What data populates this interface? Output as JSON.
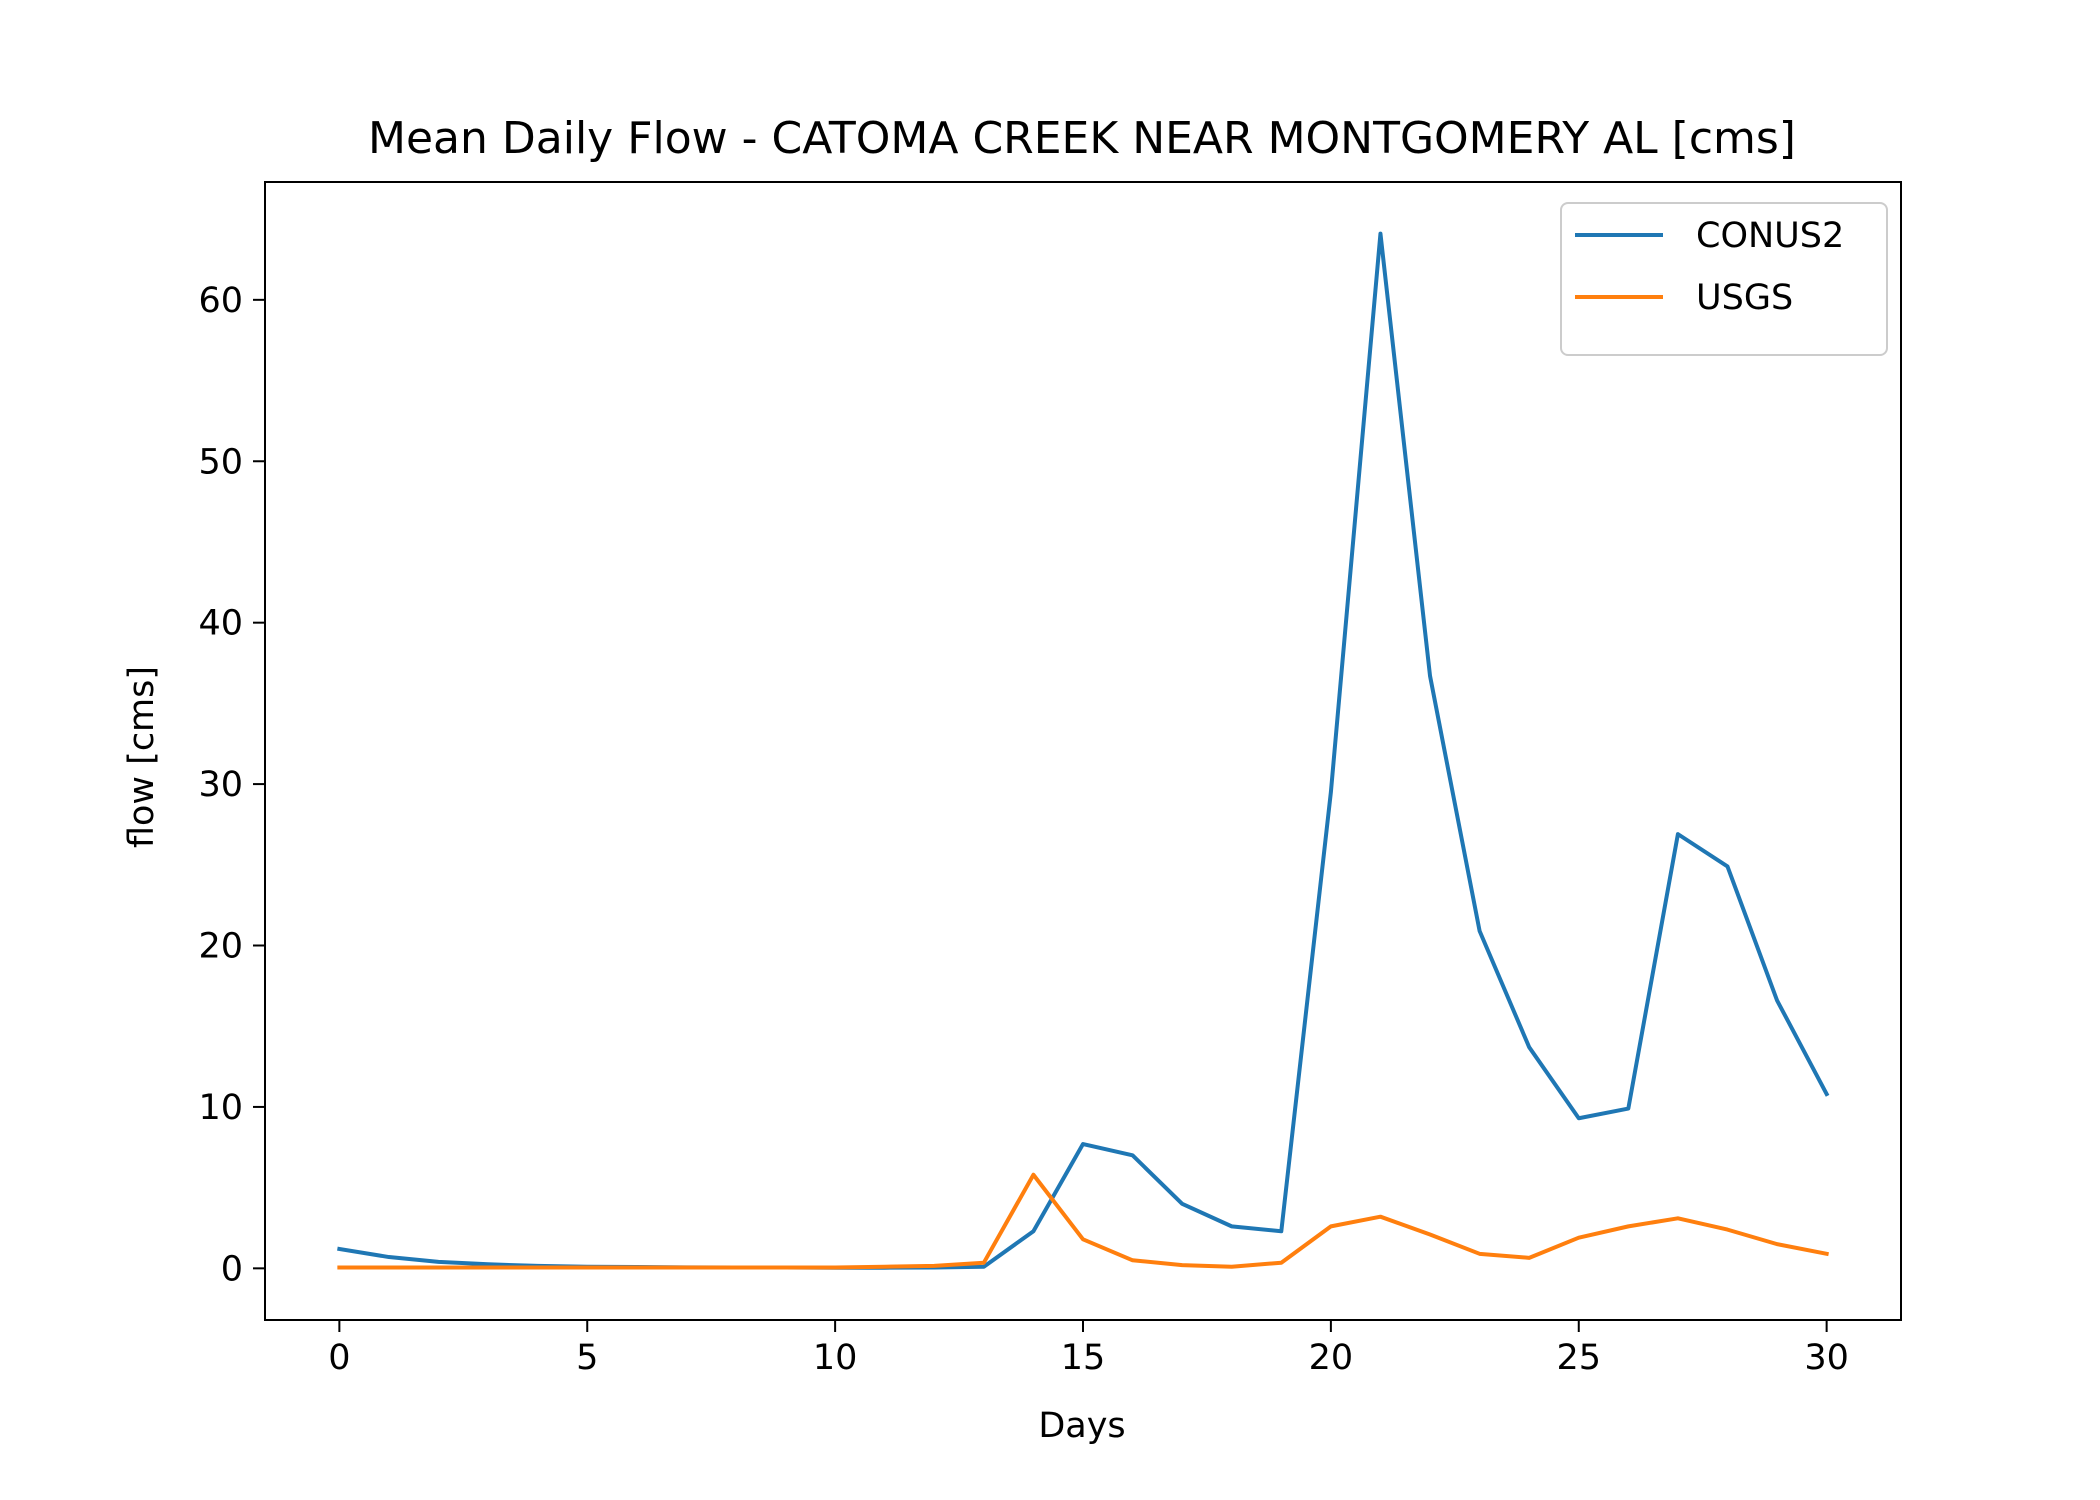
{
  "chart_data": {
    "type": "line",
    "title": "Mean Daily Flow - CATOMA CREEK NEAR MONTGOMERY AL [cms]",
    "xlabel": "Days",
    "ylabel": "flow [cms]",
    "xlim": [
      -1.5,
      31.5
    ],
    "ylim": [
      -3.2,
      67.3
    ],
    "xticks": [
      0,
      5,
      10,
      15,
      20,
      25,
      30
    ],
    "yticks": [
      0,
      10,
      20,
      30,
      40,
      50,
      60
    ],
    "grid": false,
    "legend_position": "top-right",
    "x": [
      0,
      1,
      2,
      3,
      4,
      5,
      6,
      7,
      8,
      9,
      10,
      11,
      12,
      13,
      14,
      15,
      16,
      17,
      18,
      19,
      20,
      21,
      22,
      23,
      24,
      25,
      26,
      27,
      28,
      29,
      30
    ],
    "series": [
      {
        "name": "CONUS2",
        "color": "#1f77b4",
        "values": [
          1.2,
          0.7,
          0.4,
          0.25,
          0.15,
          0.1,
          0.08,
          0.06,
          0.05,
          0.05,
          0.04,
          0.04,
          0.05,
          0.1,
          2.3,
          7.7,
          7.0,
          4.0,
          2.6,
          2.3,
          29.5,
          64.1,
          36.7,
          20.9,
          13.7,
          9.3,
          9.9,
          26.9,
          24.9,
          16.6,
          10.8
        ]
      },
      {
        "name": "USGS",
        "color": "#ff7f0e",
        "values": [
          0.05,
          0.05,
          0.05,
          0.05,
          0.05,
          0.05,
          0.05,
          0.05,
          0.05,
          0.05,
          0.05,
          0.1,
          0.15,
          0.35,
          5.8,
          1.8,
          0.5,
          0.2,
          0.1,
          0.35,
          2.6,
          3.2,
          2.1,
          0.9,
          0.65,
          1.9,
          2.6,
          3.1,
          2.4,
          1.5,
          0.9
        ]
      }
    ]
  }
}
